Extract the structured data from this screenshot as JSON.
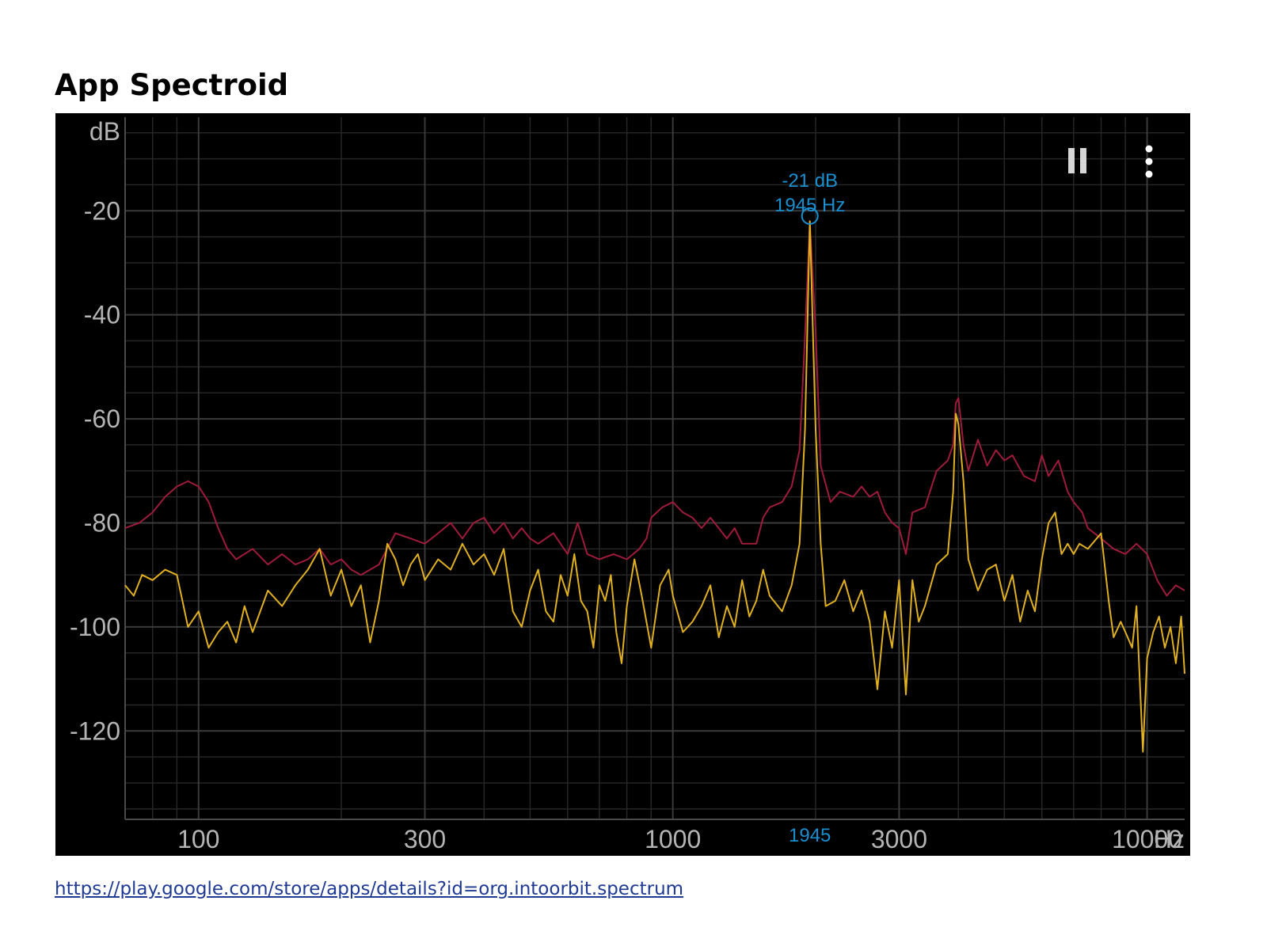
{
  "page": {
    "title": "App Spectroid",
    "link": "https://play.google.com/store/apps/details?id=org.intoorbit.spectrum"
  },
  "toolbar": {
    "pause_icon": "pause-icon",
    "menu_icon": "more-vert-icon"
  },
  "colors": {
    "background": "#000000",
    "grid": "#3a3a3a",
    "axis_text": "#b4b4b4",
    "peak_hold": "#9e1b3c",
    "spectrum": "#e0b020",
    "marker": "#1a8fd0"
  },
  "chart_data": {
    "type": "line",
    "title": "",
    "xlabel": "Hz",
    "ylabel": "dB",
    "x_scale": "log",
    "xlim": [
      70,
      12000
    ],
    "ylim": [
      -137,
      -2
    ],
    "x_ticks": [
      {
        "value": 100,
        "label": "100"
      },
      {
        "value": 300,
        "label": "300"
      },
      {
        "value": 1000,
        "label": "1000"
      },
      {
        "value": 3000,
        "label": "3000"
      },
      {
        "value": 10000,
        "label": "10000"
      }
    ],
    "y_ticks": [
      {
        "value": -20,
        "label": "-20"
      },
      {
        "value": -40,
        "label": "-40"
      },
      {
        "value": -60,
        "label": "-60"
      },
      {
        "value": -80,
        "label": "-80"
      },
      {
        "value": -100,
        "label": "-100"
      },
      {
        "value": -120,
        "label": "-120"
      }
    ],
    "grid": true,
    "marker": {
      "freq": 1945,
      "level": -21,
      "db_label": "-21 dB",
      "hz_label": "1945 Hz",
      "axis_label": "1945"
    },
    "series": [
      {
        "color": "#9e1b3c",
        "points": [
          [
            70,
            -81
          ],
          [
            75,
            -80
          ],
          [
            80,
            -78
          ],
          [
            85,
            -75
          ],
          [
            90,
            -73
          ],
          [
            95,
            -72
          ],
          [
            100,
            -73
          ],
          [
            105,
            -76
          ],
          [
            110,
            -81
          ],
          [
            115,
            -85
          ],
          [
            120,
            -87
          ],
          [
            130,
            -85
          ],
          [
            140,
            -88
          ],
          [
            150,
            -86
          ],
          [
            160,
            -88
          ],
          [
            170,
            -87
          ],
          [
            180,
            -85
          ],
          [
            190,
            -88
          ],
          [
            200,
            -87
          ],
          [
            210,
            -89
          ],
          [
            220,
            -90
          ],
          [
            240,
            -88
          ],
          [
            260,
            -82
          ],
          [
            280,
            -83
          ],
          [
            300,
            -84
          ],
          [
            320,
            -82
          ],
          [
            340,
            -80
          ],
          [
            360,
            -83
          ],
          [
            380,
            -80
          ],
          [
            400,
            -79
          ],
          [
            420,
            -82
          ],
          [
            440,
            -80
          ],
          [
            460,
            -83
          ],
          [
            480,
            -81
          ],
          [
            500,
            -83
          ],
          [
            520,
            -84
          ],
          [
            560,
            -82
          ],
          [
            600,
            -86
          ],
          [
            630,
            -80
          ],
          [
            660,
            -86
          ],
          [
            700,
            -87
          ],
          [
            750,
            -86
          ],
          [
            800,
            -87
          ],
          [
            850,
            -85
          ],
          [
            880,
            -83
          ],
          [
            900,
            -79
          ],
          [
            950,
            -77
          ],
          [
            1000,
            -76
          ],
          [
            1050,
            -78
          ],
          [
            1100,
            -79
          ],
          [
            1150,
            -81
          ],
          [
            1200,
            -79
          ],
          [
            1250,
            -81
          ],
          [
            1300,
            -83
          ],
          [
            1350,
            -81
          ],
          [
            1400,
            -84
          ],
          [
            1500,
            -84
          ],
          [
            1550,
            -79
          ],
          [
            1600,
            -77
          ],
          [
            1700,
            -76
          ],
          [
            1780,
            -73
          ],
          [
            1850,
            -66
          ],
          [
            1900,
            -44
          ],
          [
            1945,
            -22
          ],
          [
            2000,
            -43
          ],
          [
            2050,
            -69
          ],
          [
            2150,
            -76
          ],
          [
            2250,
            -74
          ],
          [
            2400,
            -75
          ],
          [
            2500,
            -73
          ],
          [
            2600,
            -75
          ],
          [
            2700,
            -74
          ],
          [
            2800,
            -78
          ],
          [
            2900,
            -80
          ],
          [
            3000,
            -81
          ],
          [
            3100,
            -86
          ],
          [
            3200,
            -78
          ],
          [
            3400,
            -77
          ],
          [
            3600,
            -70
          ],
          [
            3800,
            -68
          ],
          [
            3900,
            -65
          ],
          [
            3950,
            -57
          ],
          [
            4000,
            -56
          ],
          [
            4100,
            -65
          ],
          [
            4200,
            -70
          ],
          [
            4400,
            -64
          ],
          [
            4600,
            -69
          ],
          [
            4800,
            -66
          ],
          [
            5000,
            -68
          ],
          [
            5200,
            -67
          ],
          [
            5500,
            -71
          ],
          [
            5800,
            -72
          ],
          [
            6000,
            -67
          ],
          [
            6200,
            -71
          ],
          [
            6500,
            -68
          ],
          [
            6800,
            -74
          ],
          [
            7000,
            -76
          ],
          [
            7300,
            -78
          ],
          [
            7500,
            -81
          ],
          [
            8000,
            -83
          ],
          [
            8500,
            -85
          ],
          [
            9000,
            -86
          ],
          [
            9500,
            -84
          ],
          [
            10000,
            -86
          ],
          [
            10500,
            -91
          ],
          [
            11000,
            -94
          ],
          [
            11500,
            -92
          ],
          [
            12000,
            -93
          ]
        ]
      },
      {
        "color": "#e0b020",
        "points": [
          [
            70,
            -92
          ],
          [
            73,
            -94
          ],
          [
            76,
            -90
          ],
          [
            80,
            -91
          ],
          [
            85,
            -89
          ],
          [
            90,
            -90
          ],
          [
            95,
            -100
          ],
          [
            100,
            -97
          ],
          [
            105,
            -104
          ],
          [
            110,
            -101
          ],
          [
            115,
            -99
          ],
          [
            120,
            -103
          ],
          [
            125,
            -96
          ],
          [
            130,
            -101
          ],
          [
            140,
            -93
          ],
          [
            150,
            -96
          ],
          [
            160,
            -92
          ],
          [
            170,
            -89
          ],
          [
            180,
            -85
          ],
          [
            190,
            -94
          ],
          [
            200,
            -89
          ],
          [
            210,
            -96
          ],
          [
            220,
            -92
          ],
          [
            230,
            -103
          ],
          [
            240,
            -95
          ],
          [
            250,
            -84
          ],
          [
            260,
            -87
          ],
          [
            270,
            -92
          ],
          [
            280,
            -88
          ],
          [
            290,
            -86
          ],
          [
            300,
            -91
          ],
          [
            320,
            -87
          ],
          [
            340,
            -89
          ],
          [
            360,
            -84
          ],
          [
            380,
            -88
          ],
          [
            400,
            -86
          ],
          [
            420,
            -90
          ],
          [
            440,
            -85
          ],
          [
            460,
            -97
          ],
          [
            480,
            -100
          ],
          [
            500,
            -93
          ],
          [
            520,
            -89
          ],
          [
            540,
            -97
          ],
          [
            560,
            -99
          ],
          [
            580,
            -90
          ],
          [
            600,
            -94
          ],
          [
            620,
            -86
          ],
          [
            640,
            -95
          ],
          [
            660,
            -97
          ],
          [
            680,
            -104
          ],
          [
            700,
            -92
          ],
          [
            720,
            -95
          ],
          [
            740,
            -90
          ],
          [
            760,
            -101
          ],
          [
            780,
            -107
          ],
          [
            800,
            -96
          ],
          [
            830,
            -87
          ],
          [
            860,
            -94
          ],
          [
            900,
            -104
          ],
          [
            940,
            -92
          ],
          [
            980,
            -89
          ],
          [
            1000,
            -94
          ],
          [
            1050,
            -101
          ],
          [
            1100,
            -99
          ],
          [
            1150,
            -96
          ],
          [
            1200,
            -92
          ],
          [
            1250,
            -102
          ],
          [
            1300,
            -96
          ],
          [
            1350,
            -100
          ],
          [
            1400,
            -91
          ],
          [
            1450,
            -98
          ],
          [
            1500,
            -95
          ],
          [
            1550,
            -89
          ],
          [
            1600,
            -94
          ],
          [
            1700,
            -97
          ],
          [
            1780,
            -92
          ],
          [
            1850,
            -84
          ],
          [
            1900,
            -62
          ],
          [
            1945,
            -22
          ],
          [
            2000,
            -62
          ],
          [
            2050,
            -84
          ],
          [
            2100,
            -96
          ],
          [
            2200,
            -95
          ],
          [
            2300,
            -91
          ],
          [
            2400,
            -97
          ],
          [
            2500,
            -93
          ],
          [
            2600,
            -99
          ],
          [
            2700,
            -112
          ],
          [
            2800,
            -97
          ],
          [
            2900,
            -104
          ],
          [
            3000,
            -91
          ],
          [
            3100,
            -113
          ],
          [
            3200,
            -91
          ],
          [
            3300,
            -99
          ],
          [
            3400,
            -96
          ],
          [
            3600,
            -88
          ],
          [
            3800,
            -86
          ],
          [
            3900,
            -74
          ],
          [
            3950,
            -59
          ],
          [
            4000,
            -61
          ],
          [
            4100,
            -72
          ],
          [
            4200,
            -87
          ],
          [
            4400,
            -93
          ],
          [
            4600,
            -89
          ],
          [
            4800,
            -88
          ],
          [
            5000,
            -95
          ],
          [
            5200,
            -90
          ],
          [
            5400,
            -99
          ],
          [
            5600,
            -93
          ],
          [
            5800,
            -97
          ],
          [
            6000,
            -87
          ],
          [
            6200,
            -80
          ],
          [
            6400,
            -78
          ],
          [
            6600,
            -86
          ],
          [
            6800,
            -84
          ],
          [
            7000,
            -86
          ],
          [
            7200,
            -84
          ],
          [
            7500,
            -85
          ],
          [
            8000,
            -82
          ],
          [
            8300,
            -95
          ],
          [
            8500,
            -102
          ],
          [
            8800,
            -99
          ],
          [
            9000,
            -101
          ],
          [
            9300,
            -104
          ],
          [
            9500,
            -96
          ],
          [
            9700,
            -115
          ],
          [
            9800,
            -124
          ],
          [
            10000,
            -106
          ],
          [
            10300,
            -101
          ],
          [
            10600,
            -98
          ],
          [
            10900,
            -104
          ],
          [
            11200,
            -100
          ],
          [
            11500,
            -107
          ],
          [
            11800,
            -98
          ],
          [
            12000,
            -109
          ]
        ]
      }
    ]
  }
}
